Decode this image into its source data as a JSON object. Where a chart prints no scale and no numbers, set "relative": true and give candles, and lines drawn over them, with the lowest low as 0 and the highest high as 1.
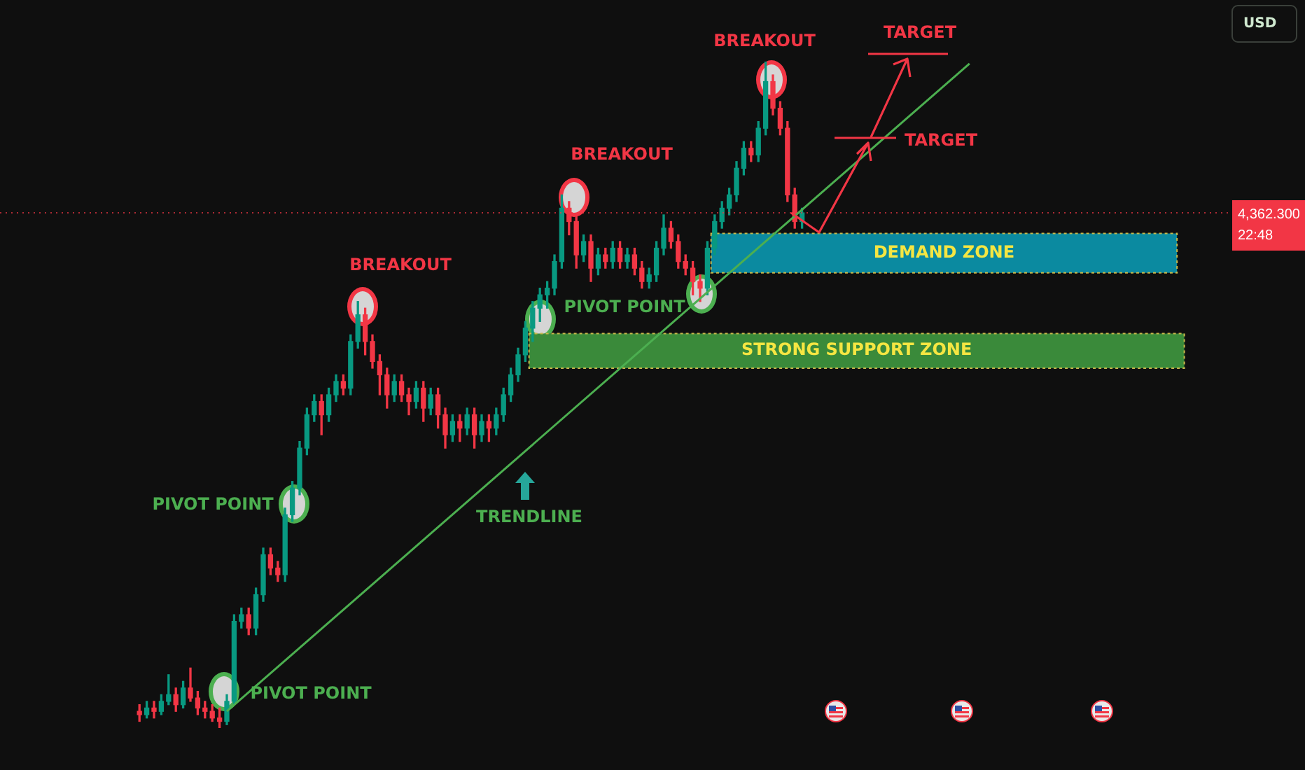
{
  "chart_data": {
    "type": "candlestick",
    "relative": true,
    "categories": [
      null,
      null,
      null,
      null,
      null,
      null,
      null,
      null,
      null,
      null,
      null,
      null,
      null,
      null,
      null,
      null,
      null,
      null,
      null,
      null,
      null,
      null,
      null,
      null,
      null,
      null,
      null,
      null,
      null,
      null,
      null,
      null,
      null,
      null,
      null,
      null,
      null,
      null,
      null,
      null,
      null,
      null,
      null,
      null,
      null,
      null,
      null,
      null,
      null,
      null,
      null,
      null,
      null,
      null,
      null,
      null,
      null,
      null,
      null,
      null,
      null,
      null,
      null,
      null,
      null,
      null,
      null,
      null,
      null,
      null,
      null,
      null,
      null,
      null,
      null,
      null,
      null,
      null,
      null,
      null,
      null,
      null,
      null,
      null,
      null,
      null,
      null,
      null,
      null,
      null,
      null,
      null,
      null,
      null,
      null,
      null,
      null,
      null,
      null,
      null,
      null,
      null,
      null,
      null,
      null,
      null,
      null,
      null,
      null,
      null,
      null,
      null,
      null,
      null,
      null,
      null,
      null,
      null,
      null,
      null,
      null,
      null,
      null,
      null,
      null,
      null,
      null,
      null,
      null,
      null,
      null,
      null,
      null,
      null,
      null,
      null,
      null,
      null,
      null,
      null,
      null,
      null,
      null,
      null,
      null
    ],
    "ohlc": [
      [
        0.025,
        0.035,
        0.01,
        0.02
      ],
      [
        0.02,
        0.04,
        0.015,
        0.03
      ],
      [
        0.03,
        0.04,
        0.015,
        0.025
      ],
      [
        0.025,
        0.05,
        0.02,
        0.04
      ],
      [
        0.04,
        0.08,
        0.035,
        0.05
      ],
      [
        0.05,
        0.06,
        0.025,
        0.035
      ],
      [
        0.035,
        0.07,
        0.03,
        0.06
      ],
      [
        0.06,
        0.09,
        0.04,
        0.045
      ],
      [
        0.045,
        0.055,
        0.02,
        0.03
      ],
      [
        0.03,
        0.04,
        0.015,
        0.025
      ],
      [
        0.025,
        0.035,
        0.01,
        0.015
      ],
      [
        0.015,
        0.03,
        0,
        0.01
      ],
      [
        0.01,
        0.05,
        0.005,
        0.04
      ],
      [
        0.04,
        0.17,
        0.035,
        0.16
      ],
      [
        0.16,
        0.18,
        0.15,
        0.17
      ],
      [
        0.17,
        0.18,
        0.14,
        0.15
      ],
      [
        0.15,
        0.21,
        0.14,
        0.2
      ],
      [
        0.2,
        0.27,
        0.19,
        0.26
      ],
      [
        0.26,
        0.27,
        0.23,
        0.24
      ],
      [
        0.24,
        0.25,
        0.22,
        0.23
      ],
      [
        0.23,
        0.33,
        0.22,
        0.32
      ],
      [
        0.32,
        0.37,
        0.31,
        0.36
      ],
      [
        0.36,
        0.43,
        0.35,
        0.42
      ],
      [
        0.42,
        0.48,
        0.41,
        0.47
      ],
      [
        0.47,
        0.5,
        0.46,
        0.49
      ],
      [
        0.49,
        0.5,
        0.44,
        0.47
      ],
      [
        0.47,
        0.51,
        0.46,
        0.5
      ],
      [
        0.5,
        0.53,
        0.49,
        0.52
      ],
      [
        0.52,
        0.53,
        0.5,
        0.51
      ],
      [
        0.51,
        0.59,
        0.5,
        0.58
      ],
      [
        0.58,
        0.64,
        0.57,
        0.62
      ],
      [
        0.62,
        0.63,
        0.56,
        0.58
      ],
      [
        0.58,
        0.59,
        0.54,
        0.55
      ],
      [
        0.55,
        0.56,
        0.5,
        0.53
      ],
      [
        0.53,
        0.54,
        0.48,
        0.5
      ],
      [
        0.5,
        0.53,
        0.49,
        0.52
      ],
      [
        0.52,
        0.53,
        0.49,
        0.5
      ],
      [
        0.5,
        0.51,
        0.47,
        0.49
      ],
      [
        0.49,
        0.52,
        0.48,
        0.51
      ],
      [
        0.51,
        0.52,
        0.46,
        0.48
      ],
      [
        0.48,
        0.51,
        0.47,
        0.5
      ],
      [
        0.5,
        0.51,
        0.45,
        0.47
      ],
      [
        0.47,
        0.48,
        0.42,
        0.44
      ],
      [
        0.44,
        0.47,
        0.43,
        0.46
      ],
      [
        0.46,
        0.47,
        0.43,
        0.45
      ],
      [
        0.45,
        0.48,
        0.44,
        0.47
      ],
      [
        0.47,
        0.48,
        0.42,
        0.44
      ],
      [
        0.44,
        0.47,
        0.43,
        0.46
      ],
      [
        0.46,
        0.47,
        0.43,
        0.45
      ],
      [
        0.45,
        0.48,
        0.44,
        0.47
      ],
      [
        0.47,
        0.51,
        0.46,
        0.5
      ],
      [
        0.5,
        0.54,
        0.49,
        0.53
      ],
      [
        0.53,
        0.57,
        0.52,
        0.56
      ],
      [
        0.56,
        0.61,
        0.55,
        0.6
      ],
      [
        0.6,
        0.64,
        0.58,
        0.63
      ],
      [
        0.63,
        0.66,
        0.61,
        0.65
      ],
      [
        0.65,
        0.67,
        0.63,
        0.66
      ],
      [
        0.66,
        0.71,
        0.65,
        0.7
      ],
      [
        0.7,
        0.8,
        0.69,
        0.78
      ],
      [
        0.78,
        0.79,
        0.74,
        0.76
      ],
      [
        0.76,
        0.77,
        0.69,
        0.71
      ],
      [
        0.71,
        0.74,
        0.7,
        0.73
      ],
      [
        0.73,
        0.74,
        0.67,
        0.69
      ],
      [
        0.69,
        0.72,
        0.68,
        0.71
      ],
      [
        0.71,
        0.72,
        0.69,
        0.7
      ],
      [
        0.7,
        0.73,
        0.69,
        0.72
      ],
      [
        0.72,
        0.73,
        0.69,
        0.7
      ],
      [
        0.7,
        0.72,
        0.69,
        0.71
      ],
      [
        0.71,
        0.72,
        0.68,
        0.69
      ],
      [
        0.69,
        0.7,
        0.66,
        0.67
      ],
      [
        0.67,
        0.69,
        0.66,
        0.68
      ],
      [
        0.68,
        0.73,
        0.67,
        0.72
      ],
      [
        0.72,
        0.77,
        0.71,
        0.75
      ],
      [
        0.75,
        0.76,
        0.72,
        0.73
      ],
      [
        0.73,
        0.74,
        0.69,
        0.7
      ],
      [
        0.7,
        0.71,
        0.68,
        0.69
      ],
      [
        0.69,
        0.7,
        0.65,
        0.67
      ],
      [
        0.67,
        0.68,
        0.64,
        0.66
      ],
      [
        0.66,
        0.73,
        0.65,
        0.72
      ],
      [
        0.72,
        0.77,
        0.71,
        0.76
      ],
      [
        0.76,
        0.79,
        0.75,
        0.78
      ],
      [
        0.78,
        0.81,
        0.77,
        0.8
      ],
      [
        0.8,
        0.85,
        0.79,
        0.84
      ],
      [
        0.84,
        0.88,
        0.83,
        0.87
      ],
      [
        0.87,
        0.88,
        0.85,
        0.86
      ],
      [
        0.86,
        0.91,
        0.85,
        0.9
      ],
      [
        0.9,
        1,
        0.89,
        0.97
      ],
      [
        0.97,
        0.98,
        0.92,
        0.93
      ],
      [
        0.93,
        0.94,
        0.89,
        0.9
      ],
      [
        0.9,
        0.91,
        0.79,
        0.8
      ],
      [
        0.8,
        0.81,
        0.75,
        0.76
      ],
      [
        0.76,
        0.78,
        0.75,
        0.773
      ],
      null,
      null,
      null,
      null,
      null,
      null,
      null,
      null,
      null,
      null,
      null,
      null,
      null,
      null,
      null,
      null,
      null,
      null,
      null,
      null,
      null,
      null,
      null,
      null,
      null,
      null,
      null,
      null,
      null,
      null,
      null,
      null,
      null,
      null,
      null,
      null,
      null,
      null,
      null,
      null,
      null,
      null,
      null,
      null,
      null,
      null,
      null,
      null,
      null,
      null,
      null,
      null,
      null
    ],
    "series": [
      {
        "type": "line",
        "color": "#4caf50",
        "values": [
          null,
          null,
          null,
          null,
          null,
          null,
          null,
          null,
          null,
          null,
          null,
          null,
          0.025,
          null,
          null,
          null,
          null,
          null,
          null,
          null,
          null,
          null,
          null,
          null,
          null,
          null,
          null,
          null,
          null,
          null,
          null,
          null,
          null,
          null,
          null,
          null,
          null,
          null,
          null,
          null,
          null,
          null,
          null,
          null,
          null,
          null,
          null,
          null,
          null,
          null,
          null,
          null,
          null,
          null,
          null,
          null,
          null,
          null,
          null,
          null,
          null,
          null,
          null,
          null,
          null,
          null,
          null,
          null,
          null,
          null,
          null,
          null,
          null,
          null,
          null,
          null,
          null,
          null,
          null,
          null,
          null,
          null,
          null,
          null,
          null,
          null,
          null,
          null,
          null,
          null,
          null,
          null,
          null,
          null,
          null,
          null,
          null,
          null,
          null,
          null,
          null,
          null,
          null,
          null,
          null,
          null,
          null,
          null,
          null,
          null,
          null,
          null,
          null,
          null,
          0.997,
          null,
          null,
          null,
          null,
          null,
          null,
          null,
          null,
          null,
          null,
          null,
          null,
          null,
          null,
          null,
          null,
          null,
          null,
          null,
          null,
          null,
          null,
          null,
          null,
          null,
          null,
          null,
          null,
          null,
          null
        ]
      }
    ],
    "ref_lines": [
      {
        "axis": "y",
        "value": 0.773,
        "color": "#f23645",
        "line_style": "dotted"
      }
    ],
    "bands": [
      {
        "axis": "y",
        "from": 0.683,
        "to": 0.742,
        "label": "DEMAND ZONE",
        "color": "#0b8aa0"
      },
      {
        "axis": "y",
        "from": 0.54,
        "to": 0.592,
        "label": "STRONG SUPPORT ZONE",
        "color": "#3a8a3a"
      }
    ],
    "annotations": [
      "BREAKOUT",
      "BREAKOUT",
      "BREAKOUT",
      "PIVOT POINT",
      "PIVOT POINT",
      "PIVOT POINT",
      "TRENDLINE",
      "TARGET",
      "TARGET",
      "22:48",
      "USD",
      "4,362.300"
    ],
    "legend": false
  }
}
